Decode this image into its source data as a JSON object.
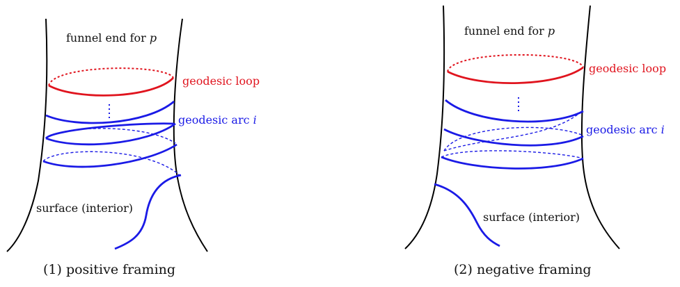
{
  "panels": [
    {
      "funnel_label": "funnel end for ",
      "funnel_var": "p",
      "loop_label": "geodesic loop",
      "arc_label": "geodesic arc ",
      "arc_var": "i",
      "surface_label": "surface (interior)",
      "caption": "(1) positive framing"
    },
    {
      "funnel_label": "funnel end for ",
      "funnel_var": "p",
      "loop_label": "geodesic loop",
      "arc_label": "geodesic arc ",
      "arc_var": "i",
      "surface_label": "surface (interior)",
      "caption": "(2) negative framing"
    }
  ],
  "colors": {
    "loop": "#e0141e",
    "arc": "#1a1ae6",
    "wall": "#000000"
  }
}
